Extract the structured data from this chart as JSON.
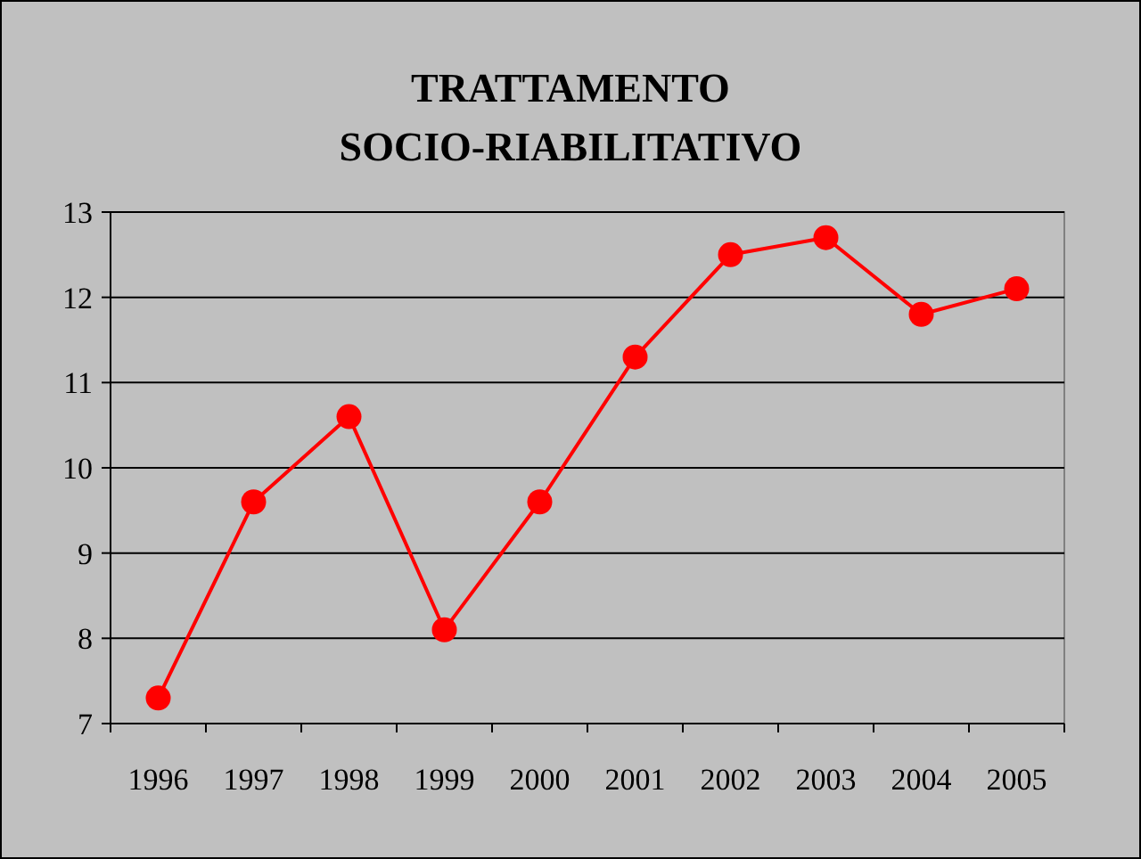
{
  "chart_data": {
    "type": "line",
    "title": "TRATTAMENTO SOCIO-RIABILITATIVO",
    "categories": [
      "1996",
      "1997",
      "1998",
      "1999",
      "2000",
      "2001",
      "2002",
      "2003",
      "2004",
      "2005"
    ],
    "series": [
      {
        "color": "#ff0000",
        "values": [
          7.3,
          9.6,
          10.6,
          8.1,
          9.6,
          11.3,
          12.5,
          12.7,
          11.8,
          12.1
        ]
      }
    ],
    "ylim": [
      7,
      13
    ],
    "yticks": [
      7,
      8,
      9,
      10,
      11,
      12,
      13
    ],
    "grid": "y",
    "marker": "circle",
    "line_style": "solid"
  }
}
